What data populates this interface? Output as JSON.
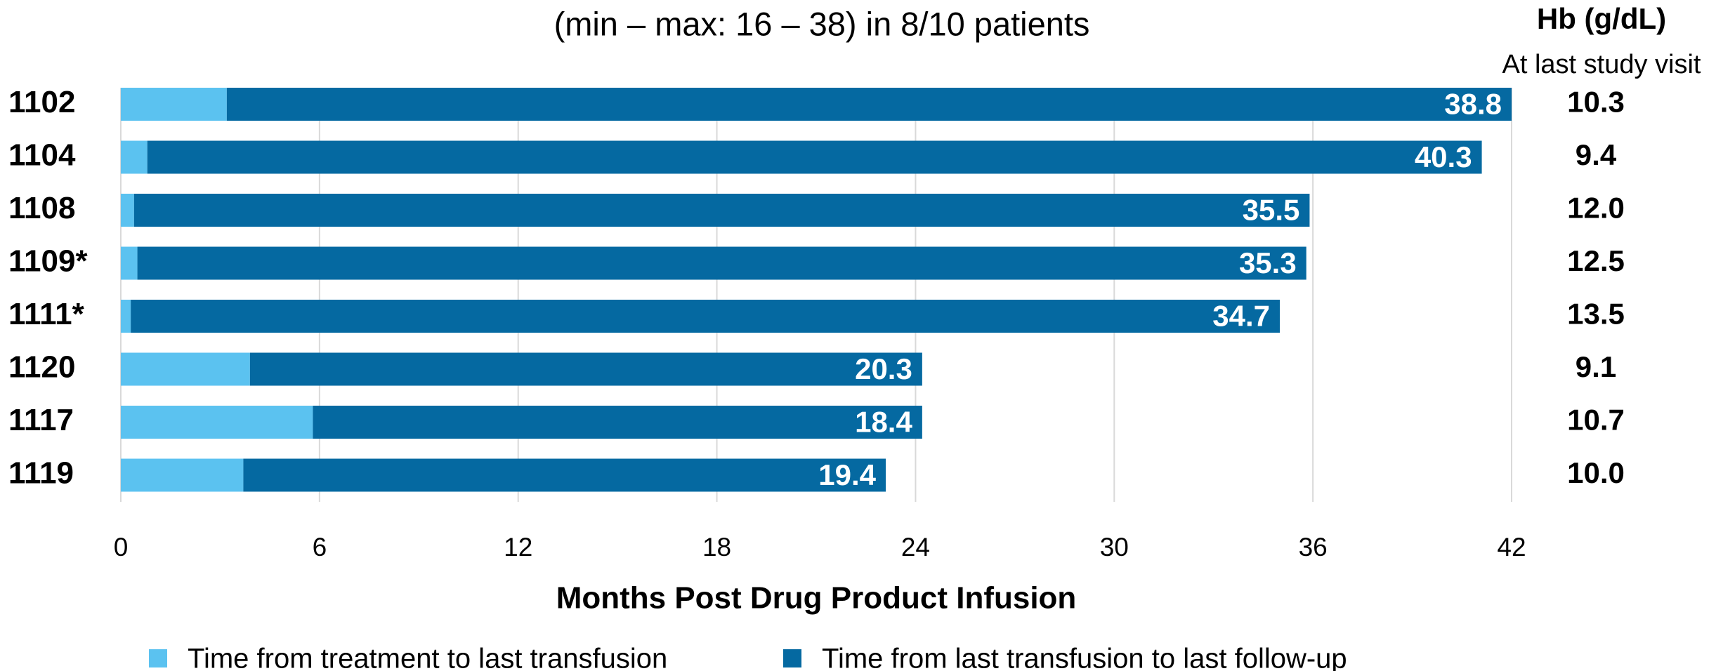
{
  "chart_data": {
    "type": "stacked_bar_horizontal",
    "title": "(min – max: 16 – 38) in 8/10 patients",
    "categories": [
      "1102",
      "1104",
      "1108",
      "1109*",
      "1111*",
      "1120",
      "1117",
      "1119"
    ],
    "series": [
      {
        "name": "Time from treatment to last transfusion",
        "color": "#5bc2f0",
        "values": [
          3.2,
          0.8,
          0.4,
          0.5,
          0.3,
          3.9,
          5.8,
          3.7
        ]
      },
      {
        "name": "Time from last transfusion to last follow-up",
        "color": "#0569a1",
        "values": [
          38.8,
          40.3,
          35.5,
          35.3,
          34.7,
          20.3,
          18.4,
          19.4
        ]
      }
    ],
    "xlim": [
      0,
      42
    ],
    "xticks": [
      0,
      6,
      12,
      18,
      24,
      30,
      36,
      42
    ],
    "grid": true,
    "x_label": "Months Post Drug Product Infusion",
    "legend": "bottom",
    "hb_header": "Hb (g/dL)",
    "hb_subheader": "At last study visit",
    "hb_values": [
      "10.3",
      "9.4",
      "12.0",
      "12.5",
      "13.5",
      "9.1",
      "10.7",
      "10.0"
    ]
  }
}
